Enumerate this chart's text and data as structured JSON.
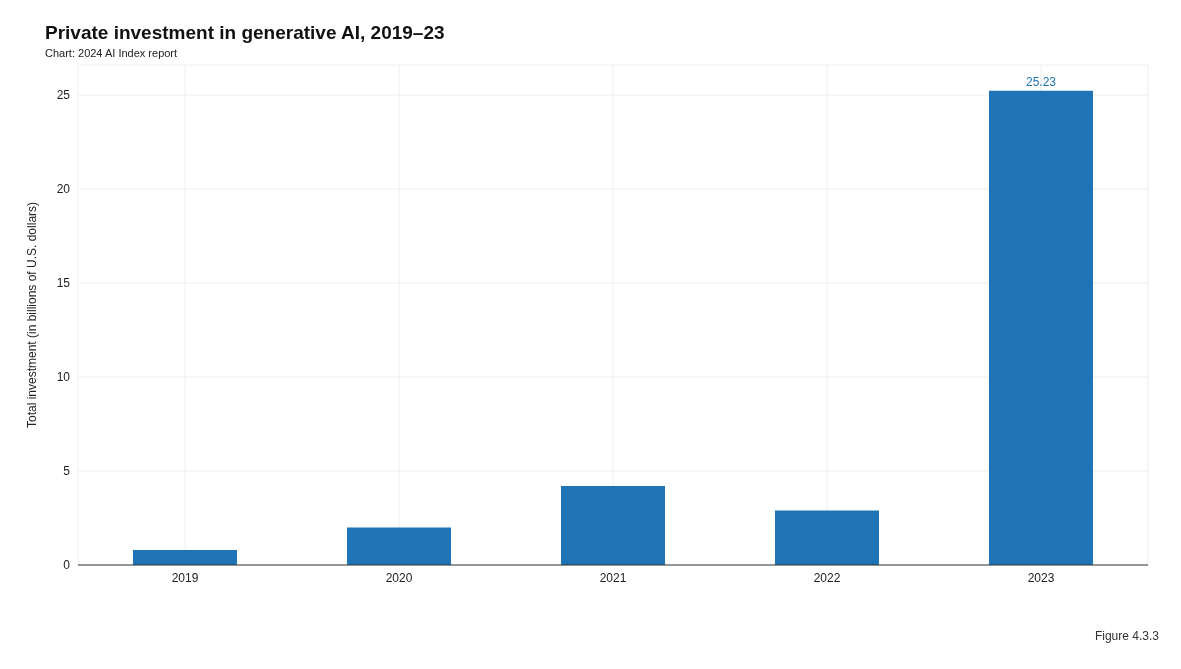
{
  "chart_data": {
    "type": "bar",
    "title": "Private investment in generative AI, 2019–23",
    "subtitle": "Chart: 2024 AI Index report",
    "ylabel": "Total investment (in billions of U.S. dollars)",
    "categories": [
      "2019",
      "2020",
      "2021",
      "2022",
      "2023"
    ],
    "values": [
      0.8,
      2.0,
      4.2,
      2.9,
      25.23
    ],
    "value_labels": [
      null,
      null,
      null,
      null,
      "25.23"
    ],
    "color": "#1f74b5",
    "ylim": [
      0,
      26.6
    ],
    "yticks": [
      0,
      5,
      10,
      15,
      20,
      25
    ],
    "grid": true,
    "annotations": [
      "Figure 4.3.3"
    ]
  }
}
